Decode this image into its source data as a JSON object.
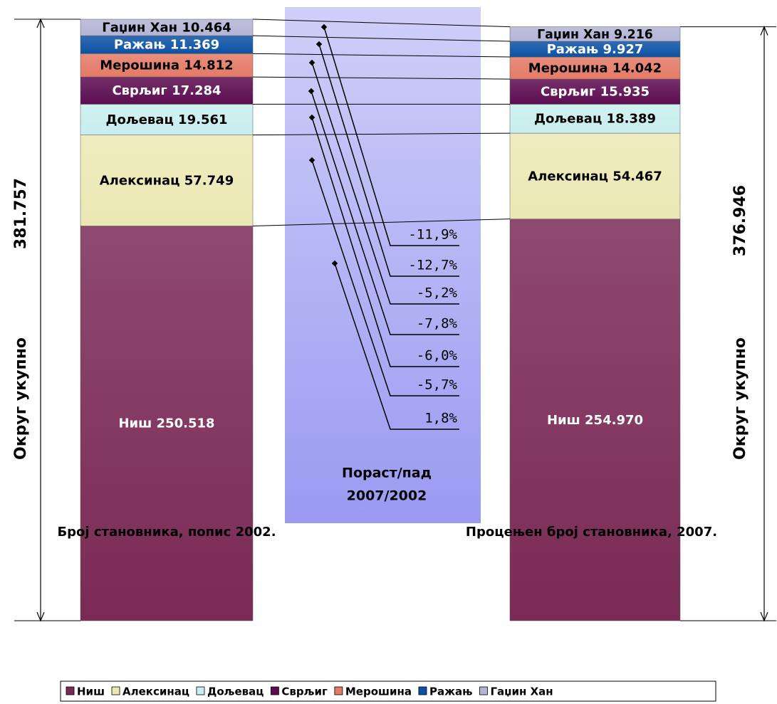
{
  "chart_data": {
    "type": "stacked-bar",
    "categories": [
      "Број становника, попис 2002.",
      "Процењен број становника, 2007."
    ],
    "series": [
      {
        "name": "Ниш",
        "color": "#7a2a55",
        "values": [
          250518,
          254970
        ],
        "value_labels": [
          "Ниш 250.518",
          "Ниш 254.970"
        ],
        "text_color": "#ffffff"
      },
      {
        "name": "Алексинац",
        "color": "#ece8b4",
        "values": [
          57749,
          54467
        ],
        "value_labels": [
          "Алексинац 57.749",
          "Алексинац 54.467"
        ],
        "text_color": "#000000"
      },
      {
        "name": "Дољевац",
        "color": "#c8eeee",
        "values": [
          19561,
          18389
        ],
        "value_labels": [
          "Дољевац 19.561",
          "Дољевац 18.389"
        ],
        "text_color": "#000000"
      },
      {
        "name": "Сврљиг",
        "color": "#5c0c50",
        "values": [
          17284,
          15935
        ],
        "value_labels": [
          "Сврљиг 17.284",
          "Сврљиг 15.935"
        ],
        "text_color": "#ffffff"
      },
      {
        "name": "Мерошина",
        "color": "#e47a66",
        "values": [
          14812,
          14042
        ],
        "value_labels": [
          "Мерошина 14.812",
          "Мерошина 14.042"
        ],
        "text_color": "#000000"
      },
      {
        "name": "Ражањ",
        "color": "#0c52a4",
        "values": [
          11369,
          9927
        ],
        "value_labels": [
          "Ражањ 11.369",
          "Ражањ 9.927"
        ],
        "text_color": "#ffffff"
      },
      {
        "name": "Гаџин Хан",
        "color": "#b4b4d6",
        "values": [
          10464,
          9216
        ],
        "value_labels": [
          "Гаџин Хан 10.464",
          "Гаџин Хан 9.216"
        ],
        "text_color": "#000000"
      }
    ],
    "totals": [
      {
        "value": 381757,
        "label": "381.757"
      },
      {
        "value": 376946,
        "label": "376.946"
      }
    ],
    "total_caption": "Округ укупно",
    "change_title": [
      "Пораст/пад",
      "2007/2002"
    ],
    "changes": [
      "-11,9%",
      "-12,7%",
      "-5,2%",
      "-7,8%",
      "-6,0%",
      "-5,7%",
      "1,8%"
    ]
  }
}
